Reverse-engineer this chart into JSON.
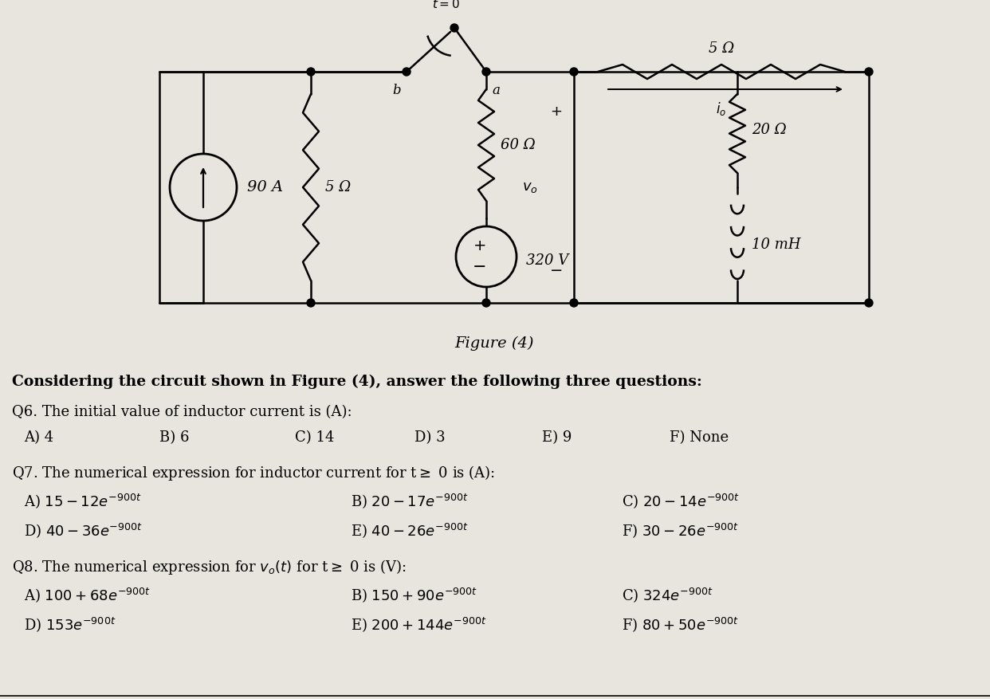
{
  "bg_color": "#e8e4de",
  "title": "Figure (4)",
  "question_intro": "Considering the circuit shown in Figure (4), answer the following three questions:",
  "q6_text": "Q6. The initial value of inductor current is (A):",
  "q7_text": "Q7. The numerical expression for inductor current for t",
  "q8_text": "Q8. The numerical expression for $v_o(t)$ for t"
}
